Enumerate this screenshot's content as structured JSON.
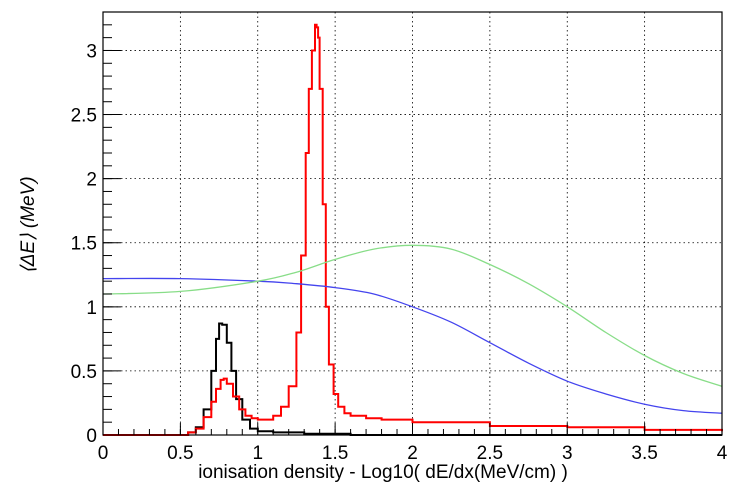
{
  "chart_data": {
    "type": "line",
    "title": "",
    "xlabel": "ionisation density - Log10( dE/dx(MeV/cm) )",
    "ylabel": "⟨ΔE⟩ (MeV)",
    "xlim": [
      0,
      4
    ],
    "ylim": [
      0,
      3.3
    ],
    "grid": true,
    "x_ticks": [
      "0",
      "0.5",
      "1",
      "1.5",
      "2",
      "2.5",
      "3",
      "3.5",
      "4"
    ],
    "y_ticks": [
      "0",
      "0.5",
      "1",
      "1.5",
      "2",
      "2.5",
      "3"
    ],
    "series": [
      {
        "color": "#000000",
        "style": "step",
        "x": [
          0,
          0.3,
          0.45,
          0.55,
          0.6,
          0.65,
          0.7,
          0.73,
          0.75,
          0.77,
          0.8,
          0.83,
          0.86,
          0.9,
          0.95,
          1.0,
          1.1,
          1.2,
          1.3,
          1.4,
          1.6,
          2.0,
          4.0
        ],
        "y": [
          0,
          0,
          0.0,
          0.02,
          0.06,
          0.2,
          0.5,
          0.75,
          0.87,
          0.86,
          0.72,
          0.5,
          0.28,
          0.12,
          0.05,
          0.03,
          0.02,
          0.02,
          0.01,
          0.01,
          0.0,
          0.0,
          0.0
        ]
      },
      {
        "color": "#ff0000",
        "style": "step",
        "x": [
          0,
          0.3,
          0.45,
          0.55,
          0.6,
          0.65,
          0.7,
          0.73,
          0.76,
          0.78,
          0.8,
          0.84,
          0.88,
          0.92,
          0.96,
          1.0,
          1.05,
          1.1,
          1.15,
          1.2,
          1.25,
          1.28,
          1.31,
          1.33,
          1.35,
          1.37,
          1.38,
          1.39,
          1.4,
          1.42,
          1.44,
          1.46,
          1.49,
          1.52,
          1.56,
          1.6,
          1.7,
          1.8,
          2.0,
          2.5,
          3.0,
          3.5,
          4.0
        ],
        "y": [
          0,
          0,
          0.0,
          0.02,
          0.05,
          0.14,
          0.26,
          0.36,
          0.43,
          0.44,
          0.4,
          0.3,
          0.2,
          0.15,
          0.13,
          0.12,
          0.12,
          0.15,
          0.22,
          0.38,
          0.8,
          1.4,
          2.2,
          2.7,
          3.0,
          3.2,
          3.18,
          3.1,
          2.7,
          1.8,
          1.0,
          0.55,
          0.32,
          0.22,
          0.17,
          0.15,
          0.13,
          0.12,
          0.1,
          0.07,
          0.06,
          0.04,
          0.03
        ]
      },
      {
        "color": "#4444ee",
        "style": "smooth",
        "x": [
          0,
          0.5,
          1.0,
          1.25,
          1.5,
          1.75,
          2.0,
          2.25,
          2.5,
          2.75,
          3.0,
          3.25,
          3.5,
          3.75,
          4.0
        ],
        "y": [
          1.22,
          1.22,
          1.2,
          1.18,
          1.15,
          1.1,
          1.0,
          0.88,
          0.72,
          0.56,
          0.42,
          0.32,
          0.24,
          0.19,
          0.17
        ]
      },
      {
        "color": "#88dd88",
        "style": "smooth",
        "x": [
          0,
          0.5,
          1.0,
          1.25,
          1.5,
          1.75,
          2.0,
          2.25,
          2.5,
          2.75,
          3.0,
          3.25,
          3.5,
          3.75,
          4.0
        ],
        "y": [
          1.1,
          1.12,
          1.2,
          1.27,
          1.37,
          1.45,
          1.48,
          1.45,
          1.33,
          1.18,
          1.0,
          0.8,
          0.62,
          0.48,
          0.38
        ]
      }
    ]
  }
}
